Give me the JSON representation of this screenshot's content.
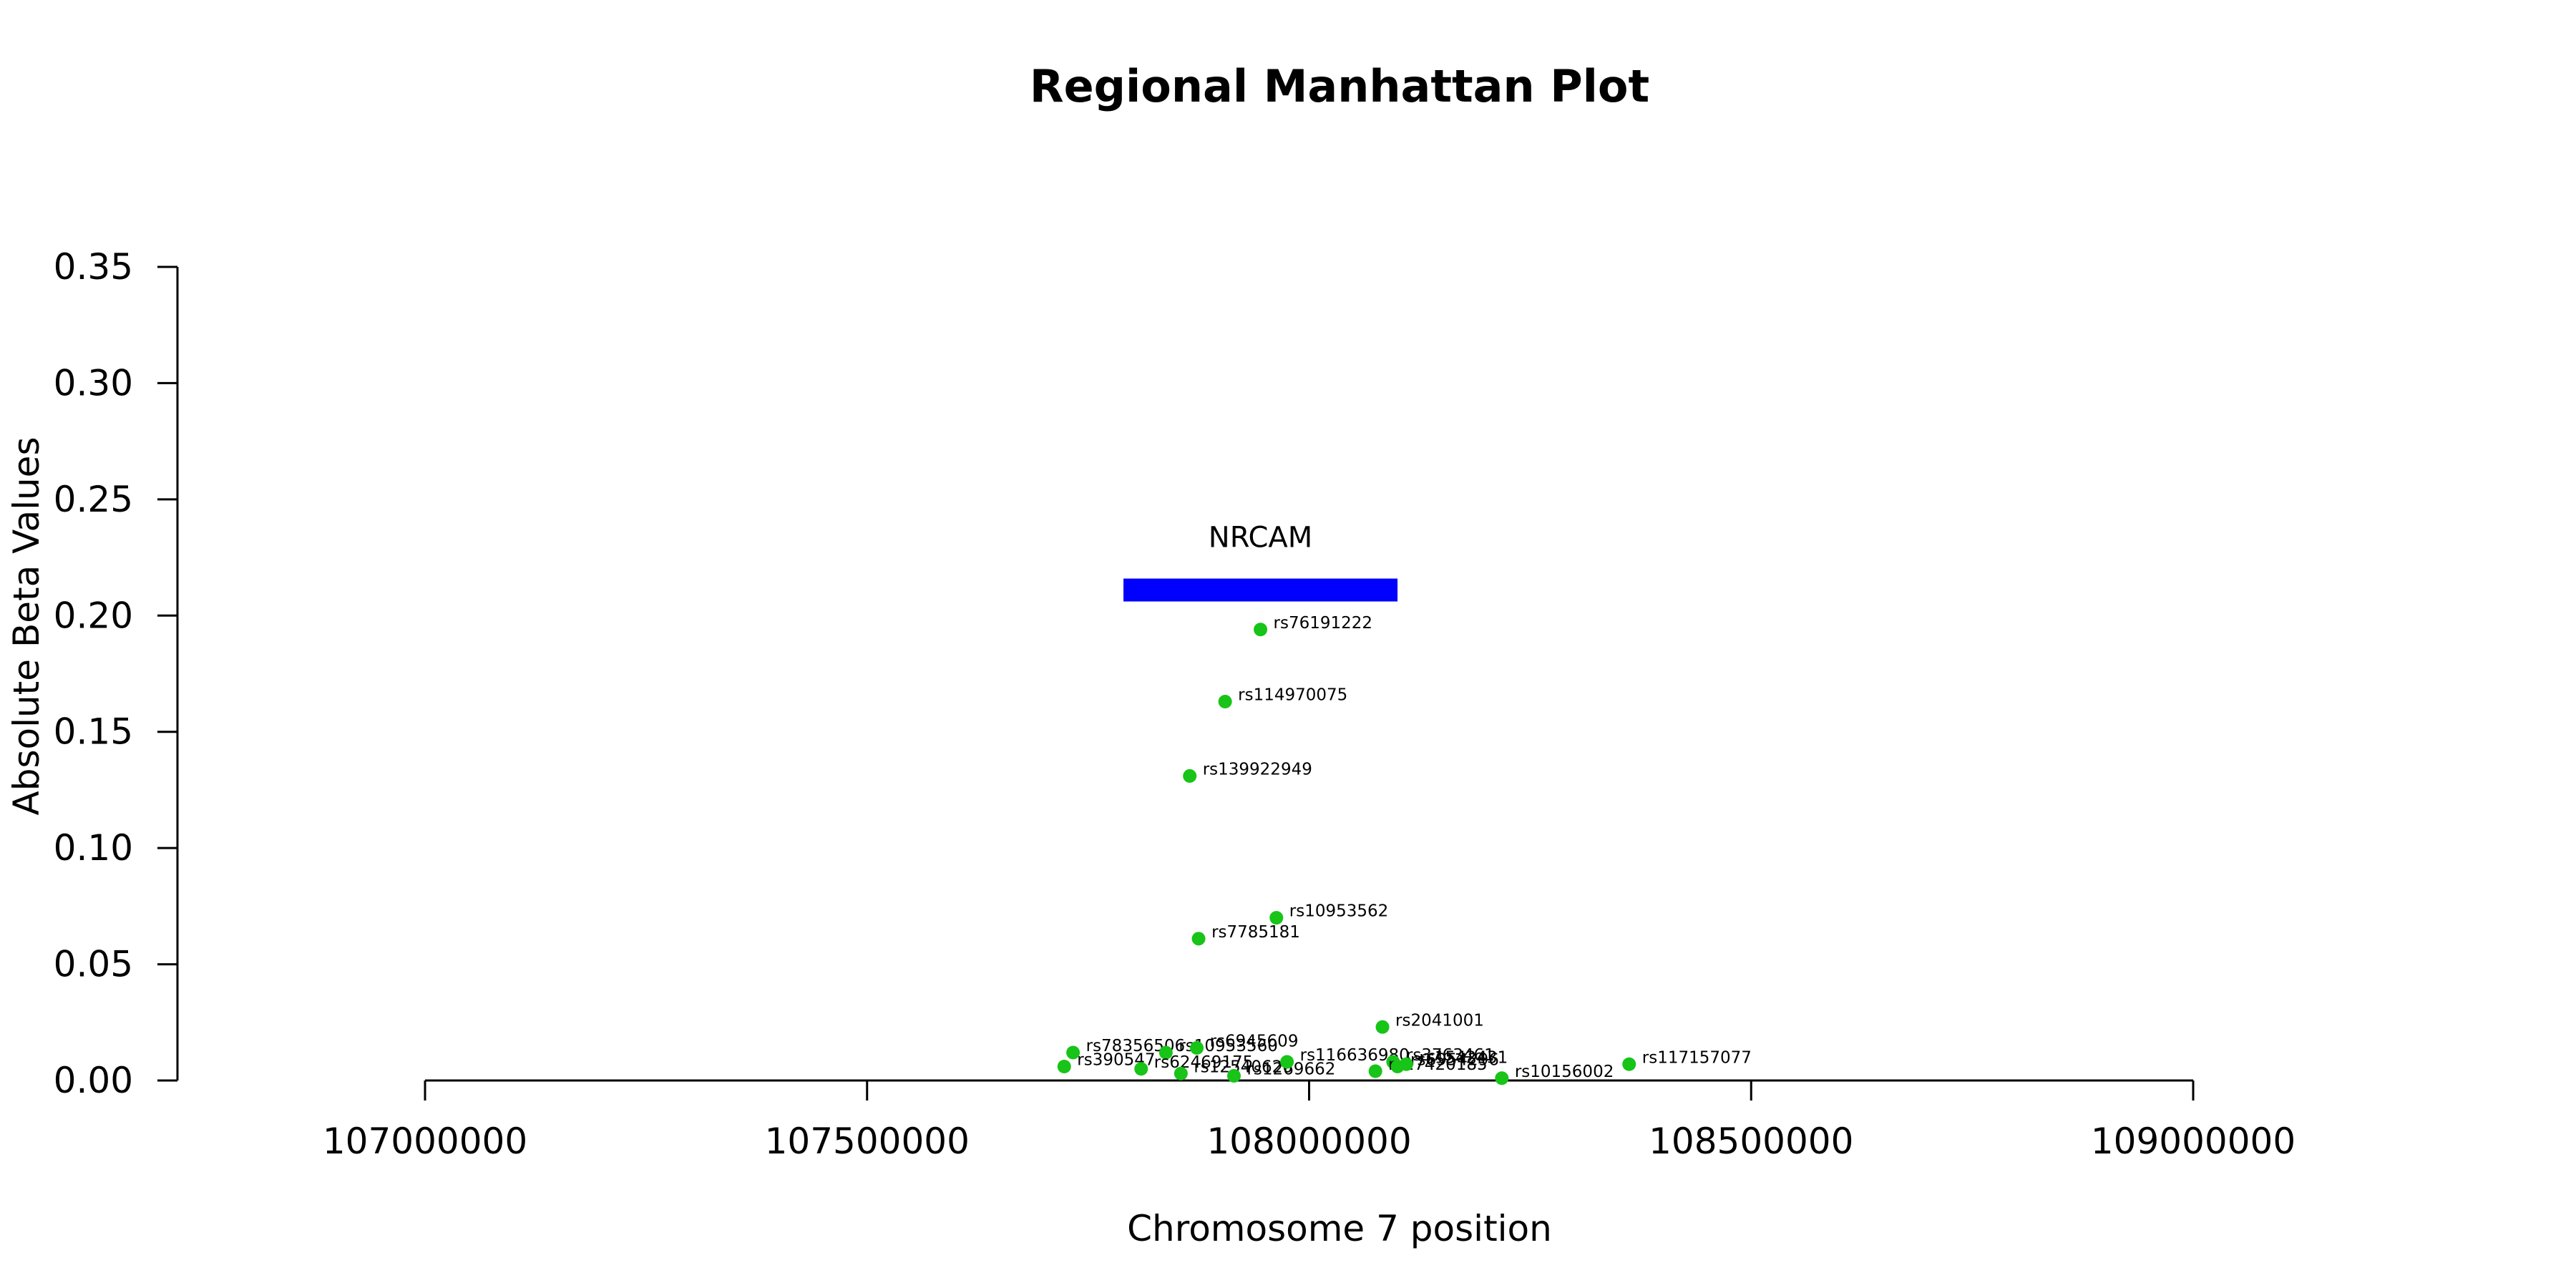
{
  "colors": {
    "point": "#17c417",
    "gene": "#0000ff",
    "axis": "#000000"
  },
  "chart_data": {
    "type": "scatter",
    "title": "Regional Manhattan Plot",
    "xlabel": "Chromosome 7 position",
    "ylabel": "Absolute Beta Values",
    "xlim": [
      107000000,
      109000000
    ],
    "ylim": [
      0,
      0.35
    ],
    "xticks": [
      {
        "value": 107000000,
        "label": "107000000"
      },
      {
        "value": 107500000,
        "label": "107500000"
      },
      {
        "value": 108000000,
        "label": "108000000"
      },
      {
        "value": 108500000,
        "label": "108500000"
      },
      {
        "value": 109000000,
        "label": "109000000"
      }
    ],
    "yticks": [
      {
        "value": 0.0,
        "label": "0.00"
      },
      {
        "value": 0.05,
        "label": "0.05"
      },
      {
        "value": 0.1,
        "label": "0.10"
      },
      {
        "value": 0.15,
        "label": "0.15"
      },
      {
        "value": 0.2,
        "label": "0.20"
      },
      {
        "value": 0.25,
        "label": "0.25"
      },
      {
        "value": 0.3,
        "label": "0.30"
      },
      {
        "value": 0.35,
        "label": "0.35"
      }
    ],
    "gene": {
      "name": "NRCAM",
      "start": 107790000,
      "end": 108100000,
      "y": 0.211
    },
    "points": [
      {
        "label": "rs76191222",
        "x": 107945000,
        "y": 0.194
      },
      {
        "label": "rs114970075",
        "x": 107905000,
        "y": 0.163
      },
      {
        "label": "rs139922949",
        "x": 107865000,
        "y": 0.131
      },
      {
        "label": "rs10953562",
        "x": 107963000,
        "y": 0.07
      },
      {
        "label": "rs7785181",
        "x": 107875000,
        "y": 0.061
      },
      {
        "label": "rs2041001",
        "x": 108083000,
        "y": 0.023
      },
      {
        "label": "rs78356506",
        "x": 107733000,
        "y": 0.012
      },
      {
        "label": "rs10953560",
        "x": 107838000,
        "y": 0.012
      },
      {
        "label": "rs6945609",
        "x": 107873000,
        "y": 0.014
      },
      {
        "label": "rs390547",
        "x": 107723000,
        "y": 0.006
      },
      {
        "label": "rs62469175",
        "x": 107810000,
        "y": 0.005
      },
      {
        "label": "rs12540620",
        "x": 107855000,
        "y": 0.003
      },
      {
        "label": "rs1269662",
        "x": 107915000,
        "y": 0.002
      },
      {
        "label": "rs116636980",
        "x": 107975000,
        "y": 0.008
      },
      {
        "label": "rs3763461",
        "x": 108095000,
        "y": 0.008
      },
      {
        "label": "rs17420185",
        "x": 108075000,
        "y": 0.004
      },
      {
        "label": "rs6954296",
        "x": 108100000,
        "y": 0.006
      },
      {
        "label": "rs1542431",
        "x": 108110000,
        "y": 0.007
      },
      {
        "label": "rs10156002",
        "x": 108218000,
        "y": 0.001
      },
      {
        "label": "rs117157077",
        "x": 108362000,
        "y": 0.007
      }
    ]
  }
}
